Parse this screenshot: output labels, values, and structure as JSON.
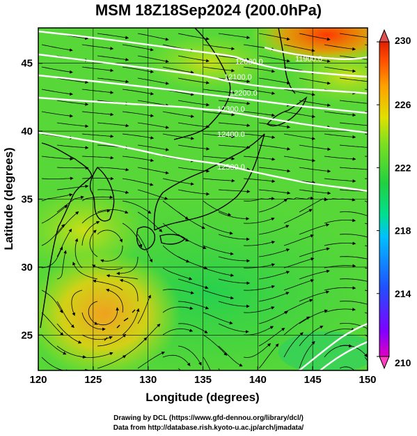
{
  "title": "MSM 18Z18Sep2024 (200.0hPa)",
  "x_axis": {
    "label": "Longitude (degrees)",
    "ticks": [
      "120",
      "125",
      "130",
      "135",
      "140",
      "145",
      "150"
    ],
    "range": [
      120,
      150
    ]
  },
  "y_axis": {
    "label": "Latitude  (degrees)",
    "ticks": [
      "25",
      "30",
      "35",
      "40",
      "45"
    ],
    "range": [
      22.4,
      47.6
    ]
  },
  "colorbar": {
    "ticks": [
      "230",
      "226",
      "222",
      "218",
      "214",
      "210"
    ],
    "range": [
      210,
      230
    ],
    "colors": [
      "#e000c0",
      "#8000ff",
      "#2050ff",
      "#00c0ff",
      "#00e090",
      "#20d040",
      "#80e020",
      "#e0e000",
      "#ffa000",
      "#ff5000",
      "#e02000"
    ]
  },
  "contours": [
    {
      "label": "12000.0"
    },
    {
      "label": "11900.0"
    },
    {
      "label": "12100.0"
    },
    {
      "label": "12200.0"
    },
    {
      "label": "12300.0"
    },
    {
      "label": "12400.0"
    },
    {
      "label": "12500.0"
    }
  ],
  "credits": {
    "line1": "Drawing by DCL (https://www.gfd-dennou.org/library/dcl/)",
    "line2": "Data from http://database.rish.kyoto-u.ac.jp/arch/jmadata/"
  }
}
